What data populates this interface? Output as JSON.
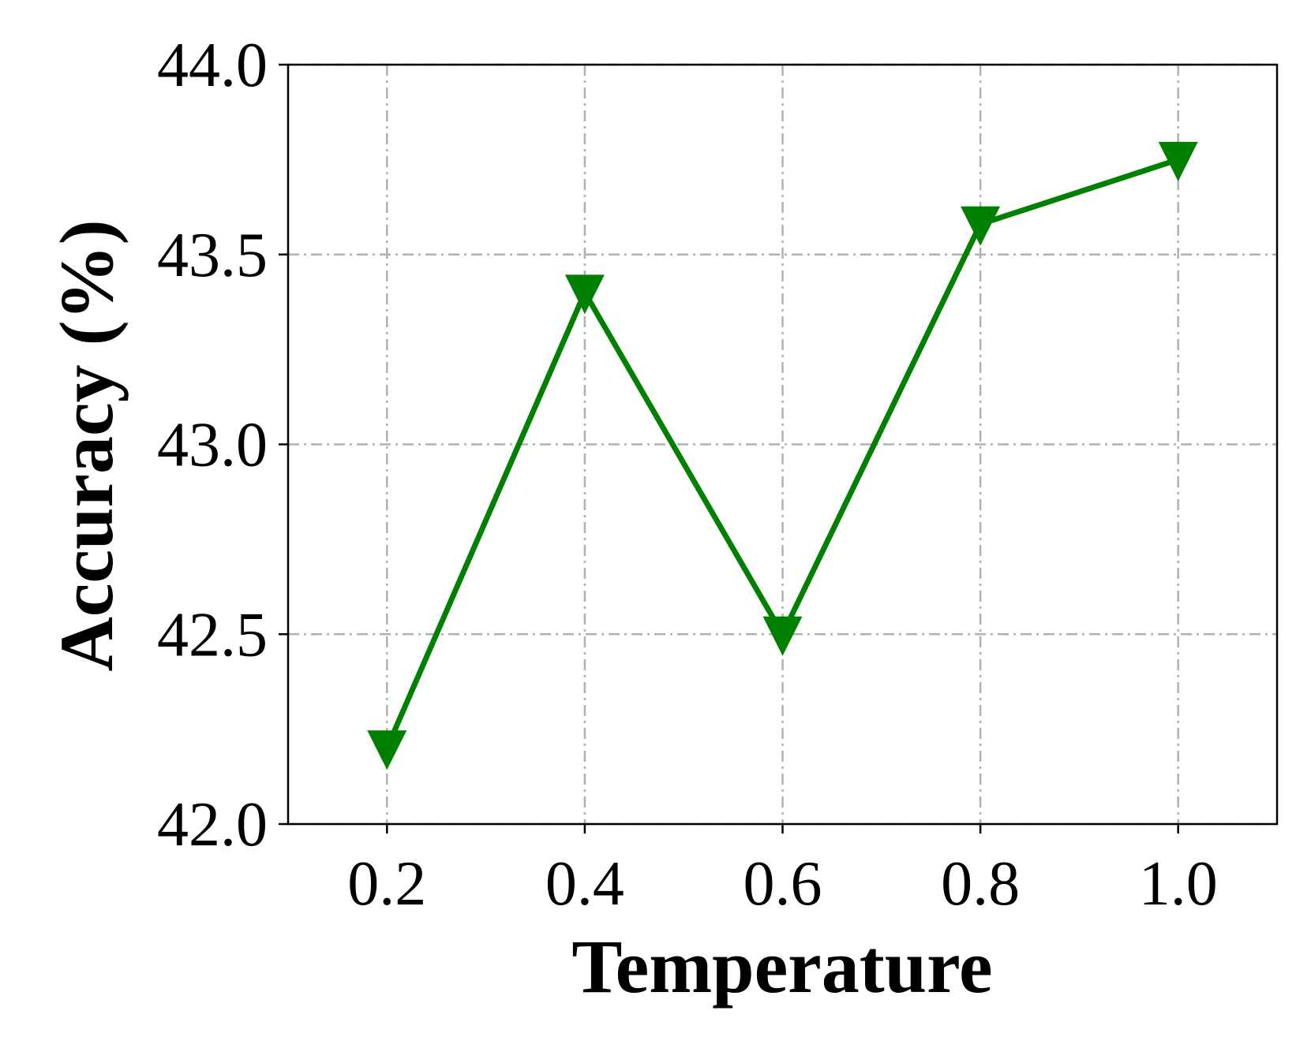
{
  "chart_data": {
    "type": "line",
    "title": "",
    "xlabel": "Temperature",
    "ylabel": "Accuracy (%)",
    "x": [
      0.2,
      0.4,
      0.6,
      0.8,
      1.0
    ],
    "x_tick_labels": [
      "0.2",
      "0.4",
      "0.6",
      "0.8",
      "1.0"
    ],
    "xlim": [
      0.1,
      1.1
    ],
    "ylim": [
      42.0,
      44.0
    ],
    "y_ticks": [
      42.0,
      42.5,
      43.0,
      43.5,
      44.0
    ],
    "y_tick_labels": [
      "42.0",
      "42.5",
      "43.0",
      "43.5",
      "44.0"
    ],
    "grid": true,
    "legend": false,
    "series": [
      {
        "values": [
          42.2,
          43.4,
          42.5,
          43.58,
          43.75
        ],
        "color": "#008000",
        "marker": "triangle-down"
      }
    ]
  }
}
